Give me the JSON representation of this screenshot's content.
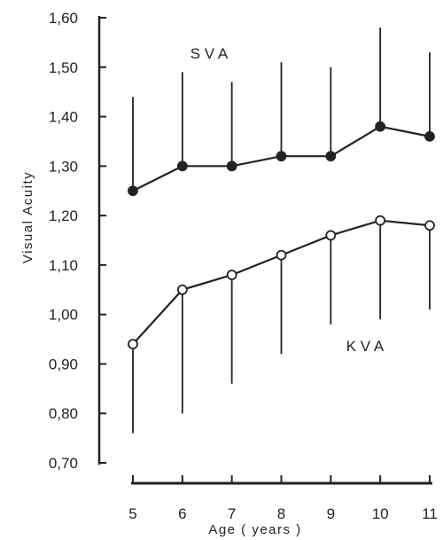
{
  "chart_data": {
    "type": "line",
    "title": "",
    "xlabel": "Age ( years )",
    "ylabel": "Visual Acuity",
    "x": [
      5,
      6,
      7,
      8,
      9,
      10,
      11
    ],
    "xticks": [
      "5",
      "6",
      "7",
      "8",
      "9",
      "10",
      "11"
    ],
    "ylim": [
      0.7,
      1.6
    ],
    "yticks": [
      "0,70",
      "0,80",
      "0,90",
      "1,00",
      "1,10",
      "1,20",
      "1,30",
      "1,40",
      "1,50",
      "1,60"
    ],
    "grid": false,
    "series": [
      {
        "name": "S V A",
        "marker": "filled-circle",
        "values": [
          1.25,
          1.3,
          1.3,
          1.32,
          1.32,
          1.38,
          1.36
        ],
        "error_direction": "up",
        "error_top": [
          1.44,
          1.49,
          1.47,
          1.51,
          1.5,
          1.58,
          1.53
        ]
      },
      {
        "name": "K V A",
        "marker": "open-circle",
        "values": [
          0.94,
          1.05,
          1.08,
          1.12,
          1.16,
          1.19,
          1.18
        ],
        "error_direction": "down",
        "error_bottom": [
          0.76,
          0.8,
          0.86,
          0.92,
          0.98,
          0.99,
          1.01
        ]
      }
    ],
    "colors": {
      "ink": "#222222",
      "background": "#ffffff"
    }
  }
}
